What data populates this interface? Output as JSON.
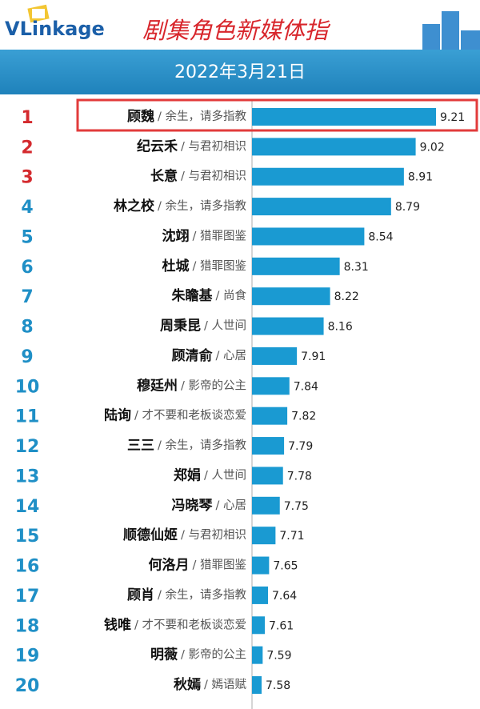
{
  "chart_data": {
    "type": "bar",
    "orientation": "horizontal",
    "logo": "VLinkage",
    "title": "剧集角色新媒体指",
    "subtitle": "2022年3月21日",
    "ranks": [
      1,
      2,
      3,
      4,
      5,
      6,
      7,
      8,
      9,
      10,
      11,
      12,
      13,
      14,
      15,
      16,
      17,
      18,
      19,
      20
    ],
    "names": [
      "顾魏",
      "纪云禾",
      "长意",
      "林之校",
      "沈翊",
      "杜城",
      "朱瞻基",
      "周秉昆",
      "顾清俞",
      "穆廷州",
      "陆询",
      "三三",
      "郑娟",
      "冯晓琴",
      "顺德仙姬",
      "何洛月",
      "顾肖",
      "钱唯",
      "明薇",
      "秋嫣"
    ],
    "categories": [
      "/ 余生，请多指教",
      "/ 与君初相识",
      "/ 与君初相识",
      "/ 余生，请多指教",
      "/ 猎罪图鉴",
      "/ 猎罪图鉴",
      "/ 尚食",
      "/ 人世间",
      "/ 心居",
      "/ 影帝的公主",
      "/ 才不要和老板谈恋爱",
      "/ 余生，请多指教",
      "/ 人世间",
      "/ 心居",
      "/ 与君初相识",
      "/ 猎罪图鉴",
      "/ 余生，请多指教",
      "/ 才不要和老板谈恋爱",
      "/ 影帝的公主",
      "/ 嫣语赋"
    ],
    "values": [
      9.21,
      9.02,
      8.91,
      8.79,
      8.54,
      8.31,
      8.22,
      8.16,
      7.91,
      7.84,
      7.82,
      7.79,
      7.78,
      7.75,
      7.71,
      7.65,
      7.64,
      7.61,
      7.59,
      7.58
    ],
    "color": "#1a9ad2",
    "top_rank_color": "#d42a2e",
    "rank_color": "#1f8fc6",
    "highlight_color": "#e23b3b"
  }
}
